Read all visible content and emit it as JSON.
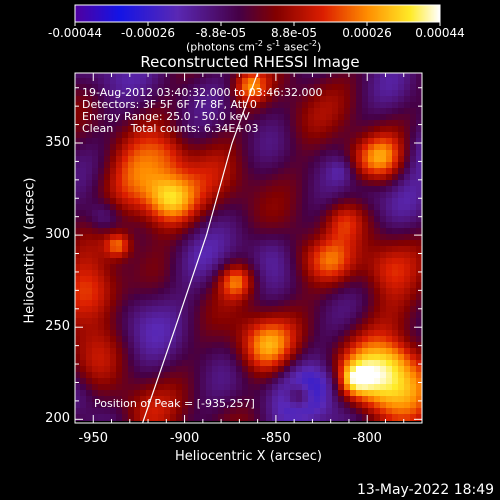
{
  "colorbar": {
    "tick_labels": [
      "-0.00044",
      "-0.00026",
      "-8.8e-05",
      "8.8e-05",
      "0.00026",
      "0.00044"
    ],
    "units_prefix": "(photons cm",
    "units_exp1": "-2",
    "units_mid1": " s",
    "units_exp2": "-1",
    "units_mid2": " asec",
    "units_exp3": "-2",
    "units_suffix": ")",
    "range": [
      -0.00044,
      0.00044
    ],
    "colormap": "rainbow-purple-blue-red-yellow-white"
  },
  "plot": {
    "title": "Reconstructed RHESSI Image",
    "info_lines": [
      "19-Aug-2012 03:40:32.000 to 03:46:32.000",
      "Detectors: 3F 5F 6F 7F 8F, Att 0",
      "Energy Range: 25.0 - 50.0 keV",
      "Clean     Total counts: 6.34E+03"
    ],
    "peak_label": "Position of Peak = [-935,257]",
    "limb": "solar limb line"
  },
  "chart_data": {
    "type": "heatmap",
    "title": "Reconstructed RHESSI Image",
    "xlabel": "Heliocentric X (arcsec)",
    "ylabel": "Heliocentric Y (arcsec)",
    "xlim": [
      -960,
      -770
    ],
    "ylim": [
      198,
      388
    ],
    "x_ticks": [
      -950,
      -900,
      -850,
      -800
    ],
    "y_ticks": [
      200,
      250,
      300,
      350
    ],
    "x_tick_labels": [
      "-950",
      "-900",
      "-850",
      "-800"
    ],
    "y_tick_labels": [
      "200",
      "250",
      "300",
      "350"
    ],
    "peak": [
      -935,
      257
    ],
    "limb_points": [
      [
        -923,
        198
      ],
      [
        -905,
        250
      ],
      [
        -888,
        300
      ],
      [
        -874,
        350
      ],
      [
        -860,
        388
      ]
    ]
  },
  "footer": {
    "timestamp": "13-May-2022 18:49"
  }
}
